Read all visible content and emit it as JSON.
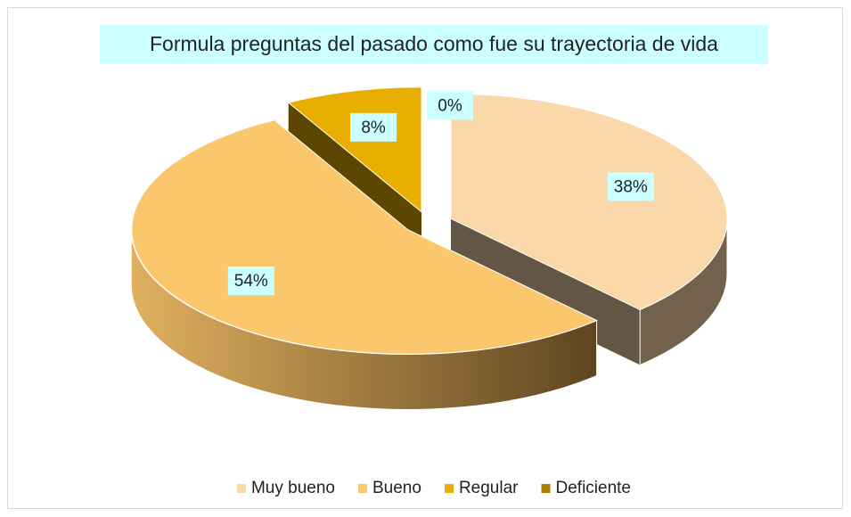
{
  "chart_data": {
    "type": "pie3d",
    "title": "Formula preguntas del pasado como fue su trayectoria de vida",
    "categories": [
      "Muy bueno",
      "Bueno",
      "Regular",
      "Deficiente"
    ],
    "values": [
      38,
      54,
      8,
      0
    ],
    "value_labels": [
      "38%",
      "54%",
      "8%",
      "0%"
    ],
    "colors": [
      "#fbd8aa",
      "#fbc76c",
      "#e8ae00",
      "#a87f00"
    ],
    "legend": "bottom"
  }
}
